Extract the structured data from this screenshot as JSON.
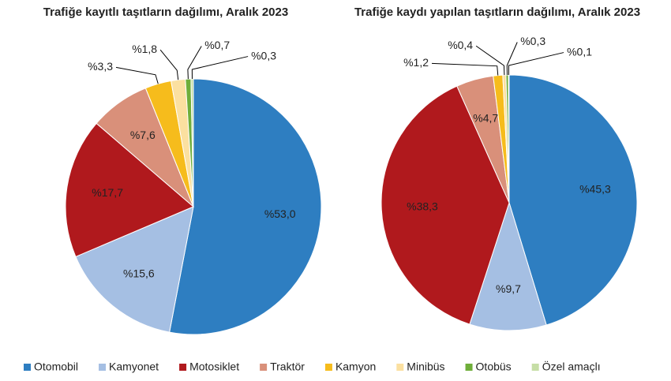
{
  "chart_data": [
    {
      "type": "pie",
      "title": "Trafiğe kayıtlı taşıtların dağılımı, Aralık 2023",
      "categories": [
        "Otomobil",
        "Kamyonet",
        "Motosiklet",
        "Traktör",
        "Kamyon",
        "Minibüs",
        "Otobüs",
        "Özel amaçlı"
      ],
      "colors": [
        "#2e7ec1",
        "#a5bfe3",
        "#b0191d",
        "#d9907a",
        "#f6bc1c",
        "#fbe0a0",
        "#6fae3a",
        "#c6dea6"
      ],
      "values": [
        53.0,
        15.6,
        17.7,
        7.6,
        3.3,
        1.8,
        0.7,
        0.3
      ],
      "value_labels": [
        "%53,0",
        "%15,6",
        "%17,7",
        "%7,6",
        "%3,3",
        "%1,8",
        "%0,7",
        "%0,3"
      ]
    },
    {
      "type": "pie",
      "title": "Trafiğe kaydı yapılan taşıtların dağılımı, Aralık 2023",
      "values": [
        45.3,
        9.7,
        38.3,
        4.7,
        1.2,
        0.4,
        0.3,
        0.1
      ],
      "value_labels": [
        "%45,3",
        "%9,7",
        "%38,3",
        "%4,7",
        "%1,2",
        "%0,4",
        "%0,3",
        "%0,1"
      ]
    }
  ]
}
